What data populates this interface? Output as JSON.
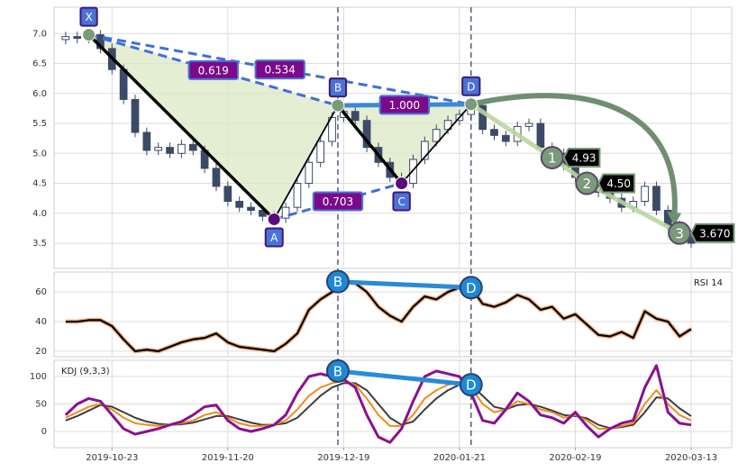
{
  "chart_data": [
    {
      "type": "candlestick",
      "x": [
        12,
        14,
        16,
        18,
        20,
        22,
        24,
        26,
        28,
        30,
        32,
        34,
        36,
        38,
        40,
        42,
        44,
        46,
        48,
        50,
        52,
        54,
        56,
        58,
        60,
        62,
        64,
        66,
        68,
        70,
        72,
        74,
        76,
        78,
        80,
        82,
        84,
        86,
        88,
        90,
        92,
        94,
        96,
        98,
        100,
        102,
        104,
        106,
        108,
        110,
        112,
        114,
        116,
        118,
        120
      ],
      "open": [
        6.9,
        6.95,
        6.92,
        6.98,
        6.75,
        6.4,
        5.9,
        5.35,
        5.05,
        5.1,
        5.0,
        5.15,
        5.05,
        4.75,
        4.45,
        4.2,
        4.1,
        4.05,
        3.95,
        3.92,
        4.1,
        4.5,
        4.85,
        5.2,
        5.6,
        5.7,
        5.55,
        5.1,
        4.85,
        4.6,
        4.5,
        4.9,
        5.2,
        5.4,
        5.55,
        5.65,
        5.8,
        5.4,
        5.3,
        5.2,
        5.45,
        5.5,
        5.1,
        5.0,
        4.8,
        4.6,
        4.4,
        4.35,
        4.25,
        4.1,
        4.2,
        4.45,
        4.05,
        3.8,
        3.6
      ],
      "high": [
        7.03,
        7.03,
        7.06,
        7.06,
        6.83,
        6.48,
        5.98,
        5.43,
        5.18,
        5.18,
        5.23,
        5.23,
        5.13,
        4.83,
        4.53,
        4.28,
        4.18,
        4.13,
        4.03,
        4.18,
        4.58,
        4.93,
        5.28,
        5.68,
        5.78,
        5.78,
        5.63,
        5.18,
        4.93,
        4.68,
        4.98,
        5.28,
        5.48,
        5.63,
        5.73,
        5.88,
        5.88,
        5.48,
        5.38,
        5.53,
        5.58,
        5.58,
        5.18,
        5.08,
        4.88,
        4.68,
        4.48,
        4.43,
        4.33,
        4.28,
        4.53,
        4.53,
        4.13,
        3.88,
        3.68
      ],
      "low": [
        6.82,
        6.84,
        6.84,
        6.67,
        6.32,
        5.82,
        5.27,
        4.97,
        4.97,
        4.92,
        4.92,
        4.97,
        4.67,
        4.37,
        4.12,
        4.02,
        3.97,
        3.87,
        3.84,
        3.84,
        4.02,
        4.42,
        4.77,
        5.12,
        5.52,
        5.47,
        5.02,
        4.77,
        4.52,
        4.42,
        4.42,
        4.82,
        5.12,
        5.32,
        5.47,
        5.57,
        5.32,
        5.22,
        5.12,
        5.12,
        5.37,
        5.02,
        4.92,
        4.72,
        4.52,
        4.32,
        4.27,
        4.17,
        4.02,
        4.02,
        4.12,
        3.97,
        3.72,
        3.52,
        3.42
      ],
      "close": [
        6.95,
        6.92,
        6.98,
        6.75,
        6.4,
        5.9,
        5.35,
        5.05,
        5.1,
        5.0,
        5.15,
        5.05,
        4.75,
        4.45,
        4.2,
        4.1,
        4.05,
        3.95,
        3.92,
        4.1,
        4.5,
        4.85,
        5.2,
        5.6,
        5.7,
        5.55,
        5.1,
        4.85,
        4.6,
        4.5,
        4.9,
        5.2,
        5.4,
        5.55,
        5.65,
        5.8,
        5.4,
        5.3,
        5.2,
        5.45,
        5.5,
        5.1,
        5.0,
        4.8,
        4.6,
        4.4,
        4.35,
        4.25,
        4.1,
        4.2,
        4.45,
        4.05,
        3.8,
        3.6,
        3.5
      ],
      "up_color": "#ffffff",
      "down_color": "#3b4a66",
      "ylim": [
        3.08,
        7.44
      ],
      "yticks": [
        3.5,
        {
          "value": 4,
          "label": "4.0"
        },
        4.5,
        {
          "value": 5,
          "label": "5.0"
        },
        5.5,
        {
          "value": 6,
          "label": "6.0"
        },
        6.5,
        {
          "value": 7,
          "label": "7.0"
        }
      ],
      "grid": true,
      "pattern": {
        "labels": [
          "X",
          "A",
          "B",
          "C",
          "D"
        ],
        "x": [
          16,
          48,
          59,
          70,
          82
        ],
        "values": [
          6.98,
          3.9,
          5.8,
          4.5,
          5.82
        ]
      },
      "ratios": {
        "values": [
          0.619,
          0.534,
          0.703,
          1.0
        ],
        "value_labels": [
          "0.619",
          "0.534",
          "0.703",
          "1.000"
        ]
      },
      "targets": {
        "labels": [
          "1",
          "2",
          "3"
        ],
        "x": [
          96,
          102,
          118
        ],
        "values": [
          4.93,
          4.5,
          3.67
        ],
        "value_labels": [
          "4.93",
          "4.50",
          "3.670"
        ]
      }
    },
    {
      "type": "line",
      "series": [
        {
          "name": "RSI 14",
          "color": "#000000",
          "values": [
            40,
            40,
            41,
            41,
            37,
            28,
            20,
            21,
            20,
            23,
            26,
            28,
            29,
            32,
            26,
            23,
            22,
            21,
            20,
            25,
            32,
            48,
            55,
            60,
            67,
            66,
            60,
            50,
            44,
            40,
            50,
            57,
            55,
            60,
            63,
            63,
            52,
            50,
            53,
            58,
            55,
            48,
            50,
            42,
            45,
            38,
            31,
            30,
            33,
            29,
            47,
            42,
            40,
            30,
            35
          ]
        }
      ],
      "ylim": [
        16.3,
        73.5
      ],
      "yticks": [
        20,
        40,
        60
      ],
      "grid": true,
      "divergence": {
        "labels": [
          "B",
          "D"
        ],
        "x": [
          59,
          82
        ],
        "values": [
          67,
          63
        ]
      }
    },
    {
      "type": "line",
      "title": "KDJ (9,3,3)",
      "series": [
        {
          "color": "#3d3d3d",
          "values": [
            20,
            28,
            38,
            48,
            45,
            35,
            25,
            18,
            14,
            12,
            13,
            16,
            22,
            28,
            28,
            22,
            16,
            12,
            12,
            15,
            25,
            45,
            65,
            80,
            88,
            88,
            75,
            50,
            25,
            12,
            18,
            40,
            60,
            75,
            85,
            85,
            65,
            45,
            40,
            48,
            50,
            45,
            38,
            30,
            28,
            24,
            12,
            6,
            8,
            12,
            35,
            62,
            60,
            42,
            28
          ]
        },
        {
          "color": "#f08a1c",
          "values": [
            25,
            35,
            45,
            50,
            40,
            25,
            15,
            12,
            10,
            12,
            15,
            20,
            30,
            35,
            25,
            15,
            10,
            10,
            12,
            20,
            40,
            65,
            80,
            88,
            92,
            85,
            60,
            30,
            10,
            10,
            30,
            60,
            75,
            85,
            90,
            80,
            50,
            35,
            40,
            55,
            50,
            40,
            35,
            25,
            30,
            20,
            5,
            5,
            10,
            15,
            50,
            75,
            50,
            30,
            20
          ]
        },
        {
          "color": "#8b0f8f",
          "values": [
            30,
            50,
            60,
            55,
            30,
            5,
            -5,
            0,
            5,
            12,
            18,
            30,
            45,
            48,
            20,
            5,
            0,
            5,
            12,
            30,
            70,
            100,
            105,
            100,
            95,
            80,
            30,
            -10,
            -20,
            5,
            55,
            100,
            110,
            105,
            100,
            70,
            20,
            15,
            40,
            70,
            55,
            30,
            25,
            15,
            35,
            10,
            -10,
            5,
            15,
            20,
            80,
            120,
            35,
            15,
            12
          ]
        }
      ],
      "ylim": [
        -29.5,
        129.5
      ],
      "yticks": [
        0,
        50,
        100
      ],
      "grid": true,
      "xlim": [
        10,
        127
      ],
      "xticks": [
        {
          "value": 20,
          "label": "2019-10-23"
        },
        {
          "value": 40,
          "label": "2019-11-20"
        },
        {
          "value": 60,
          "label": "2019-12-19"
        },
        {
          "value": 80,
          "label": "2020-01-21"
        },
        {
          "value": 100,
          "label": "2020-02-19"
        },
        {
          "value": 120,
          "label": "2020-03-13"
        }
      ],
      "divergence": {
        "labels": [
          "B",
          "D"
        ],
        "x": [
          59,
          82
        ],
        "values": [
          110,
          85
        ]
      }
    }
  ]
}
